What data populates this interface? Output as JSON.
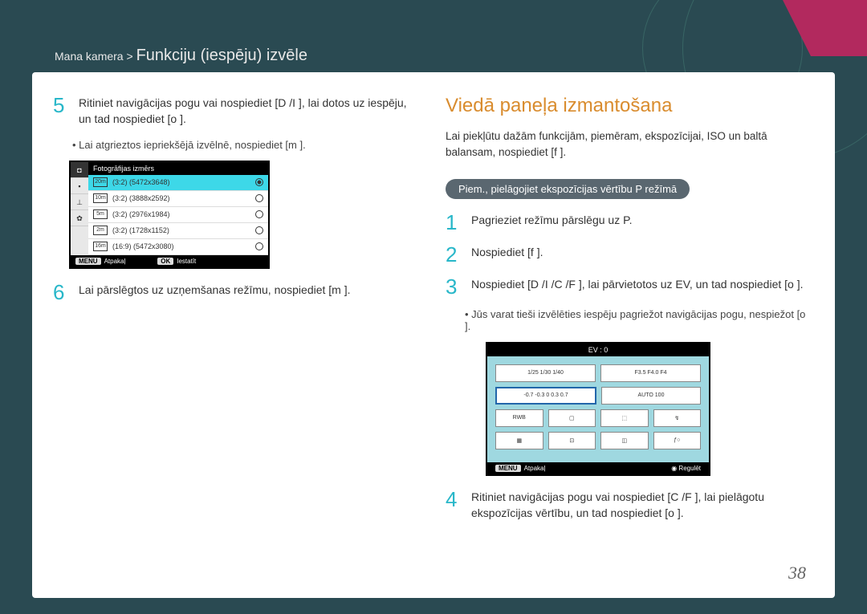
{
  "breadcrumb": {
    "pre": "Mana kamera > ",
    "main": "Funkciju (iespēju) izvēle"
  },
  "corner_color": "#b2295e",
  "left": {
    "step5": {
      "n": "5",
      "text": "Ritiniet navigācijas pogu vai nospiediet [D     /I      ], lai dotos uz iespēju, un tad nospiediet [o   ]."
    },
    "bullet5": "Lai atgrieztos iepriekšējā izvēlnē, nospiediet [m     ].",
    "camera": {
      "title": "Fotogrāfijas izmērs",
      "rows": [
        {
          "label": "(3:2) (5472x3648)",
          "hl": true
        },
        {
          "label": "(3:2) (3888x2592)"
        },
        {
          "label": "(3:2) (2976x1984)"
        },
        {
          "label": "(3:2) (1728x1152)"
        },
        {
          "label": "(16:9) (5472x3080)"
        }
      ],
      "back_btn": "MENU",
      "back": "Atpakaļ",
      "ok_btn": "OK",
      "ok": "Iestatīt"
    },
    "step6": {
      "n": "6",
      "text": "Lai pārslēgtos uz uzņemšanas režīmu, nospiediet [m     ]."
    }
  },
  "right": {
    "heading": "Viedā paneļa izmantošana",
    "intro": "Lai piekļūtu dažām funkcijām, piemēram, ekspozīcijai, ISO un baltā balansam, nospiediet [f    ].",
    "pill": "Piem., pielāgojiet ekspozīcijas vērtību P režīmā",
    "step1": {
      "n": "1",
      "text": "Pagrieziet režīmu pārslēgu uz P."
    },
    "step2": {
      "n": "2",
      "text": "Nospiediet [f    ]."
    },
    "step3": {
      "n": "3",
      "text": "Nospiediet [D     /I      /C /F    ], lai pārvietotos uz EV, un tad nospiediet [o   ]."
    },
    "bullet3": "Jūs varat tieši izvēlēties iespēju pagriežot navigācijas pogu, nespiežot [o   ].",
    "panel": {
      "title": "EV : 0",
      "row1": [
        "1/25  1/30  1/40",
        "F3.5  F4.0  F4"
      ],
      "row2": [
        "-0.7 -0.3  0  0.3  0.7",
        "AUTO   100"
      ],
      "row3": [
        "RWB",
        "▢",
        "⬚",
        "↯"
      ],
      "row4": [
        "▦",
        "⊡",
        "◫",
        "ƒ○"
      ],
      "back_btn": "MENU",
      "back": "Atpakaļ",
      "reg_icon": "◉",
      "reg": "Regulēt"
    },
    "step4": {
      "n": "4",
      "text": "Ritiniet navigācijas pogu vai nospiediet [C /F    ], lai pielāgotu ekspozīcijas vērtību, un tad nospiediet [o   ]."
    }
  },
  "pagenum": "38"
}
